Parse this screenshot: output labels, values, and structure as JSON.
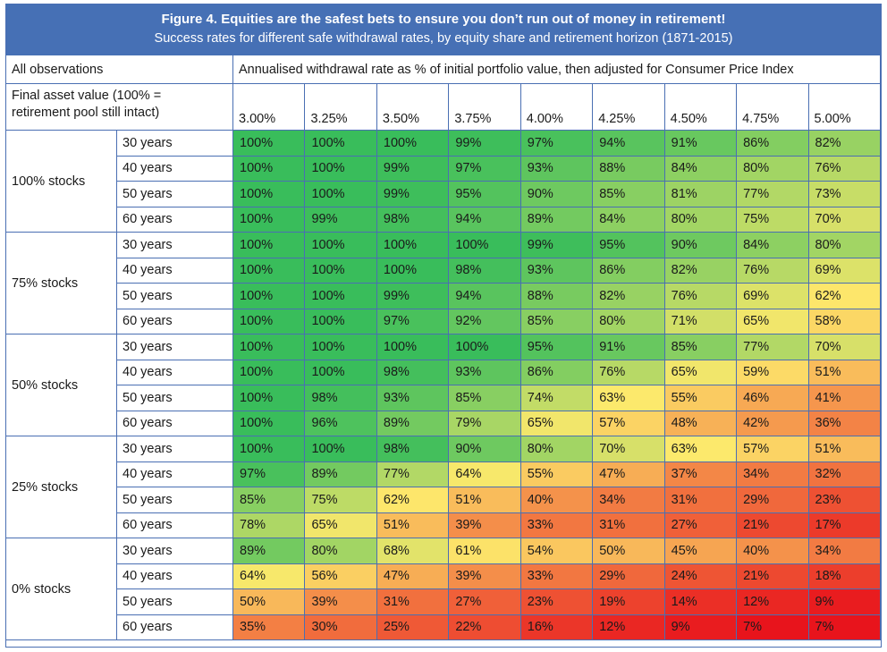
{
  "title": "Figure 4. Equities are the safest bets to ensure you don’t run out of money in retirement!",
  "subtitle": "Success rates for different safe withdrawal rates, by equity share and retirement horizon (1871-2015)",
  "header": {
    "all_observations": "All observations",
    "withdrawal_header": "Annualised withdrawal rate as % of initial portfolio value, then adjusted for Consumer Price Index",
    "final_asset_line1": "Final asset value (100% =",
    "final_asset_line2": "retirement pool still intact)"
  },
  "chart_data": {
    "type": "heatmap",
    "columns": [
      "3.00%",
      "3.25%",
      "3.50%",
      "3.75%",
      "4.00%",
      "4.25%",
      "4.50%",
      "4.75%",
      "5.00%"
    ],
    "groups": [
      {
        "label": "100% stocks",
        "rows": [
          {
            "horizon": "30 years",
            "values": [
              100,
              100,
              100,
              99,
              97,
              94,
              91,
              86,
              82
            ]
          },
          {
            "horizon": "40 years",
            "values": [
              100,
              100,
              99,
              97,
              93,
              88,
              84,
              80,
              76
            ]
          },
          {
            "horizon": "50 years",
            "values": [
              100,
              100,
              99,
              95,
              90,
              85,
              81,
              77,
              73
            ]
          },
          {
            "horizon": "60 years",
            "values": [
              100,
              99,
              98,
              94,
              89,
              84,
              80,
              75,
              70
            ]
          }
        ]
      },
      {
        "label": "75% stocks",
        "rows": [
          {
            "horizon": "30 years",
            "values": [
              100,
              100,
              100,
              100,
              99,
              95,
              90,
              84,
              80
            ]
          },
          {
            "horizon": "40 years",
            "values": [
              100,
              100,
              100,
              98,
              93,
              86,
              82,
              76,
              69
            ]
          },
          {
            "horizon": "50 years",
            "values": [
              100,
              100,
              99,
              94,
              88,
              82,
              76,
              69,
              62
            ]
          },
          {
            "horizon": "60 years",
            "values": [
              100,
              100,
              97,
              92,
              85,
              80,
              71,
              65,
              58
            ]
          }
        ]
      },
      {
        "label": "50% stocks",
        "rows": [
          {
            "horizon": "30 years",
            "values": [
              100,
              100,
              100,
              100,
              95,
              91,
              85,
              77,
              70
            ]
          },
          {
            "horizon": "40 years",
            "values": [
              100,
              100,
              98,
              93,
              86,
              76,
              65,
              59,
              51
            ]
          },
          {
            "horizon": "50 years",
            "values": [
              100,
              98,
              93,
              85,
              74,
              63,
              55,
              46,
              41
            ]
          },
          {
            "horizon": "60 years",
            "values": [
              100,
              96,
              89,
              79,
              65,
              57,
              48,
              42,
              36
            ]
          }
        ]
      },
      {
        "label": "25% stocks",
        "rows": [
          {
            "horizon": "30 years",
            "values": [
              100,
              100,
              98,
              90,
              80,
              70,
              63,
              57,
              51
            ]
          },
          {
            "horizon": "40 years",
            "values": [
              97,
              89,
              77,
              64,
              55,
              47,
              37,
              34,
              32
            ]
          },
          {
            "horizon": "50 years",
            "values": [
              85,
              75,
              62,
              51,
              40,
              34,
              31,
              29,
              23
            ]
          },
          {
            "horizon": "60 years",
            "values": [
              78,
              65,
              51,
              39,
              33,
              31,
              27,
              21,
              17
            ]
          }
        ]
      },
      {
        "label": "0% stocks",
        "rows": [
          {
            "horizon": "30 years",
            "values": [
              89,
              80,
              68,
              61,
              54,
              50,
              45,
              40,
              34
            ]
          },
          {
            "horizon": "40 years",
            "values": [
              64,
              56,
              47,
              39,
              33,
              29,
              24,
              21,
              18
            ]
          },
          {
            "horizon": "50 years",
            "values": [
              50,
              39,
              31,
              27,
              23,
              19,
              14,
              12,
              9
            ]
          },
          {
            "horizon": "60 years",
            "values": [
              35,
              30,
              25,
              22,
              16,
              12,
              9,
              7,
              7
            ]
          }
        ]
      }
    ],
    "value_suffix": "%"
  },
  "colors": {
    "frame": "#4a6fb3",
    "title_bg": "#4670b5",
    "title_text": "#ffffff",
    "scale_high": "#39bd5b",
    "scale_mid": "#fde96c",
    "scale_low": "#e8141c"
  }
}
